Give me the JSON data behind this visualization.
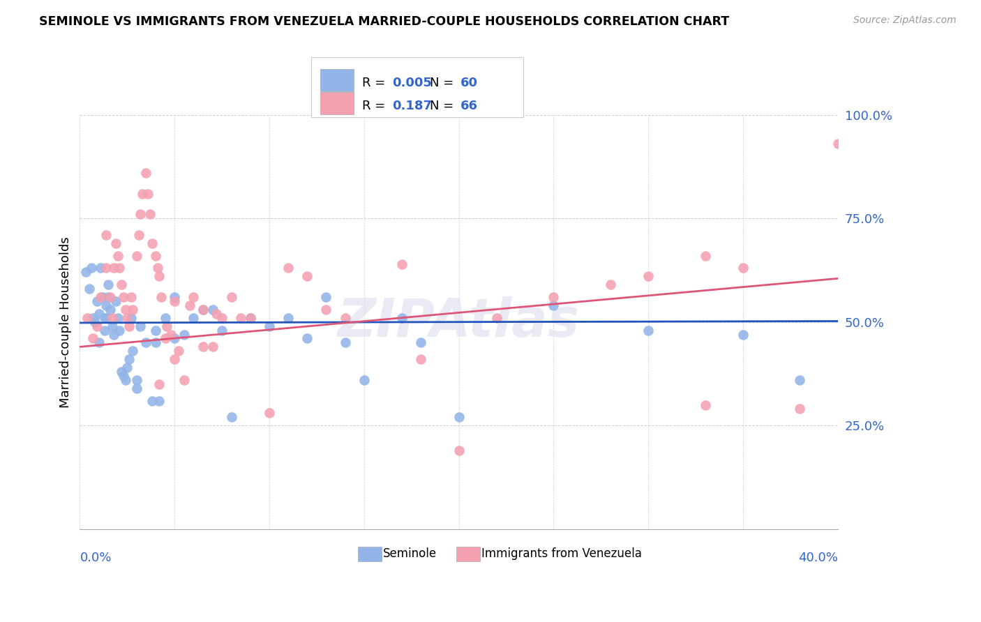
{
  "title": "SEMINOLE VS IMMIGRANTS FROM VENEZUELA MARRIED-COUPLE HOUSEHOLDS CORRELATION CHART",
  "source": "Source: ZipAtlas.com",
  "ylabel": "Married-couple Households",
  "xlim": [
    0.0,
    40.0
  ],
  "ylim": [
    0.0,
    100.0
  ],
  "blue_R": "0.005",
  "blue_N": "60",
  "pink_R": "0.187",
  "pink_N": "66",
  "blue_color": "#92b4e8",
  "pink_color": "#f4a0b0",
  "blue_line_color": "#2255bb",
  "pink_line_color": "#dd5577",
  "watermark": "ZIPAtlas",
  "seminole_label": "Seminole",
  "venezuela_label": "Immigrants from Venezuela",
  "blue_scatter_x": [
    0.3,
    0.5,
    0.6,
    0.7,
    0.8,
    0.9,
    1.0,
    1.0,
    1.1,
    1.2,
    1.3,
    1.3,
    1.4,
    1.4,
    1.5,
    1.5,
    1.6,
    1.7,
    1.8,
    1.9,
    2.0,
    2.1,
    2.2,
    2.3,
    2.4,
    2.5,
    2.6,
    2.7,
    2.8,
    3.0,
    3.0,
    3.2,
    3.5,
    3.8,
    4.0,
    4.0,
    4.2,
    4.5,
    5.0,
    5.0,
    5.5,
    6.0,
    6.5,
    7.0,
    7.5,
    8.0,
    9.0,
    10.0,
    11.0,
    12.0,
    13.0,
    14.0,
    15.0,
    17.0,
    18.0,
    20.0,
    25.0,
    30.0,
    35.0,
    38.0
  ],
  "blue_scatter_y": [
    62,
    58,
    63,
    51,
    50,
    55,
    52,
    45,
    63,
    56,
    51,
    48,
    51,
    54,
    56,
    59,
    53,
    49,
    47,
    55,
    51,
    48,
    38,
    37,
    36,
    39,
    41,
    51,
    43,
    36,
    34,
    49,
    45,
    31,
    48,
    45,
    31,
    51,
    56,
    46,
    47,
    51,
    53,
    53,
    48,
    27,
    51,
    49,
    51,
    46,
    56,
    45,
    36,
    51,
    45,
    27,
    54,
    48,
    47,
    36
  ],
  "pink_scatter_x": [
    0.4,
    0.7,
    0.9,
    1.1,
    1.4,
    1.4,
    1.6,
    1.7,
    1.8,
    1.9,
    2.0,
    2.1,
    2.2,
    2.3,
    2.4,
    2.5,
    2.6,
    2.7,
    2.8,
    3.0,
    3.1,
    3.2,
    3.3,
    3.5,
    3.6,
    3.7,
    3.8,
    4.0,
    4.1,
    4.2,
    4.3,
    4.5,
    4.6,
    5.0,
    5.2,
    5.5,
    5.8,
    6.0,
    6.5,
    7.0,
    7.5,
    8.0,
    8.5,
    9.0,
    10.0,
    11.0,
    12.0,
    13.0,
    14.0,
    17.0,
    18.0,
    20.0,
    22.0,
    25.0,
    28.0,
    30.0,
    33.0,
    35.0,
    38.0,
    40.0,
    6.5,
    7.2,
    5.0,
    4.8,
    4.2,
    33.0
  ],
  "pink_scatter_y": [
    51,
    46,
    49,
    56,
    63,
    71,
    56,
    51,
    63,
    69,
    66,
    63,
    59,
    56,
    53,
    51,
    49,
    56,
    53,
    66,
    71,
    76,
    81,
    86,
    81,
    76,
    69,
    66,
    63,
    61,
    56,
    46,
    49,
    41,
    43,
    36,
    54,
    56,
    53,
    44,
    51,
    56,
    51,
    51,
    28,
    63,
    61,
    53,
    51,
    64,
    41,
    19,
    51,
    56,
    59,
    61,
    66,
    63,
    29,
    93,
    44,
    52,
    55,
    47,
    35,
    30
  ],
  "blue_trend_x": [
    0.0,
    40.0
  ],
  "blue_trend_y": [
    49.8,
    50.2
  ],
  "pink_trend_x": [
    0.0,
    40.0
  ],
  "pink_trend_y": [
    44.0,
    60.5
  ]
}
